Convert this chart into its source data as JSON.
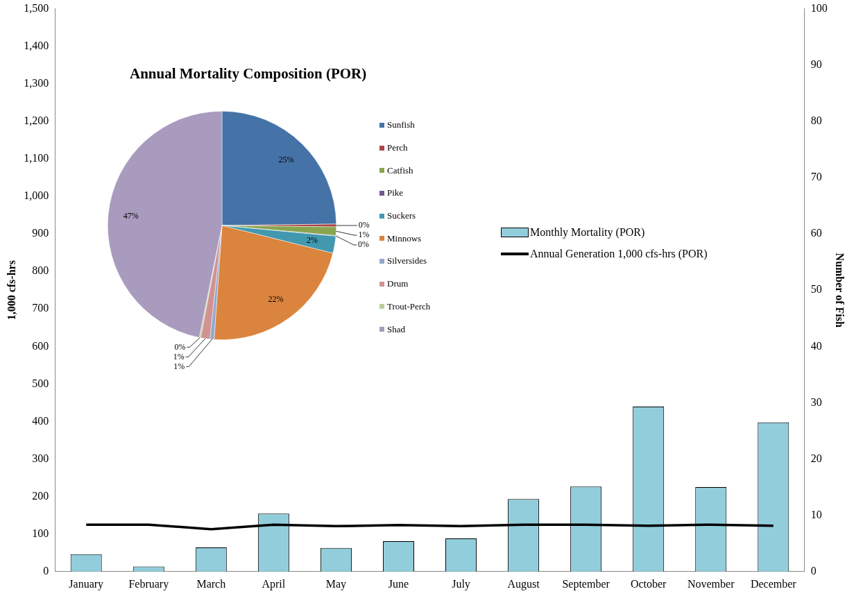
{
  "chart_data": [
    {
      "type": "bar",
      "categories": [
        "January",
        "February",
        "March",
        "April",
        "May",
        "June",
        "July",
        "August",
        "September",
        "October",
        "November",
        "December"
      ],
      "series": [
        {
          "name": "Monthly Mortality (POR)",
          "type": "bar",
          "axis": "y2",
          "color": "#92cddc",
          "values": [
            3.1,
            0.9,
            4.3,
            10.3,
            4.2,
            5.4,
            5.9,
            12.9,
            15.1,
            29.3,
            15,
            26.5
          ]
        },
        {
          "name": "Annual Generation 1,000 cfs-hrs (POR)",
          "type": "line",
          "axis": "y",
          "color": "#000000",
          "values": [
            125,
            125,
            113,
            125,
            121,
            124,
            121,
            125,
            125,
            122,
            125,
            122
          ]
        }
      ],
      "ylabel": "1,000 cfs-hrs",
      "y2label": "Number of Fish",
      "ylim": [
        0,
        1500
      ],
      "yticks": [
        0,
        100,
        200,
        300,
        400,
        500,
        600,
        700,
        800,
        900,
        {
          "value": 1000,
          "label": "1,000"
        },
        {
          "value": 1100,
          "label": "1,100"
        },
        {
          "value": 1200,
          "label": "1,200"
        },
        {
          "value": 1300,
          "label": "1,300"
        },
        {
          "value": 1400,
          "label": "1,400"
        },
        {
          "value": 1500,
          "label": "1,500"
        }
      ],
      "y2lim": [
        0,
        100
      ],
      "y2ticks": [
        0,
        10,
        20,
        30,
        40,
        50,
        60,
        70,
        80,
        90,
        100
      ],
      "legend": "right",
      "marker": "none",
      "grid": false
    },
    {
      "type": "pie",
      "title": "Annual Mortality Composition (POR)",
      "categories": [
        "Sunfish",
        "Perch",
        "Catfish",
        "Pike",
        "Suckers",
        "Minnows",
        "Silversides",
        "Drum",
        "Trout-Perch",
        "Shad"
      ],
      "values": [
        24.8,
        0.4,
        1.2,
        0.1,
        2.4,
        22.2,
        0.6,
        1.3,
        0.2,
        46.8
      ],
      "colors": [
        "#4572a7",
        "#aa4643",
        "#89a54e",
        "#71588f",
        "#4198af",
        "#db843d",
        "#93a9cf",
        "#d19392",
        "#b9cd96",
        "#a99bbd"
      ],
      "value_labels": [
        "25%",
        "0%",
        "1%",
        "0%",
        "2%",
        "22%",
        "1%",
        "1%",
        "0%",
        "47%"
      ],
      "legend": "right"
    }
  ]
}
